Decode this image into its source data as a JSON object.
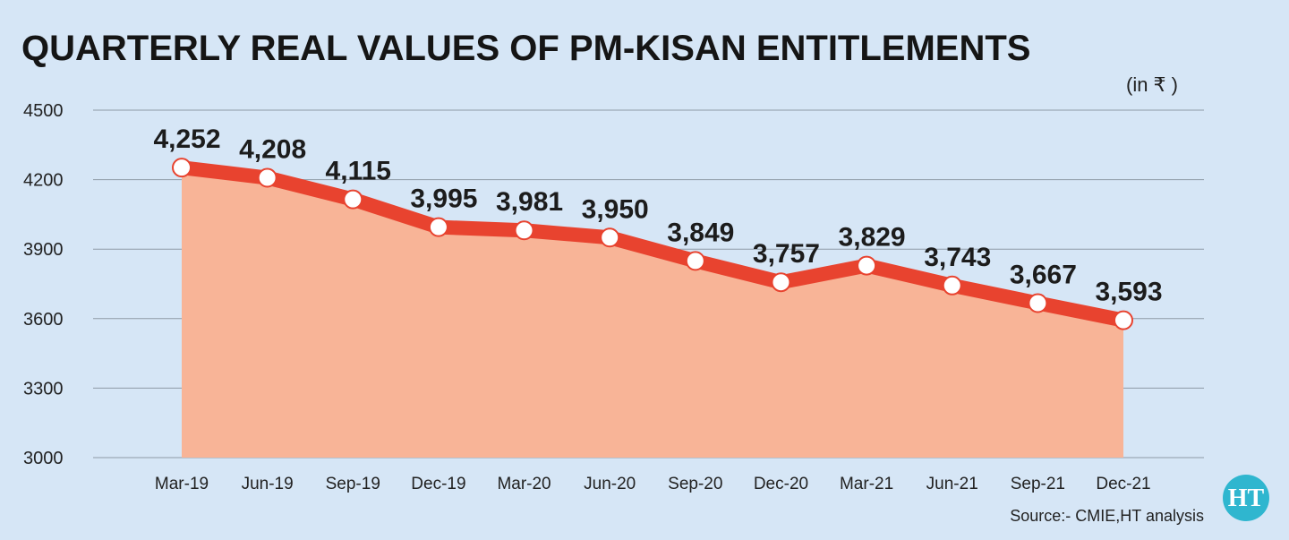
{
  "chart_data": {
    "type": "area",
    "title": "QUARTERLY REAL VALUES OF PM-KISAN ENTITLEMENTS",
    "unit_label": "(in ₹ )",
    "categories": [
      "Mar-19",
      "Jun-19",
      "Sep-19",
      "Dec-19",
      "Mar-20",
      "Jun-20",
      "Sep-20",
      "Dec-20",
      "Mar-21",
      "Jun-21",
      "Sep-21",
      "Dec-21"
    ],
    "values": [
      4252,
      4208,
      4115,
      3995,
      3981,
      3950,
      3849,
      3757,
      3829,
      3743,
      3667,
      3593
    ],
    "data_labels": [
      "4,252",
      "4,208",
      "4,115",
      "3,995",
      "3,981",
      "3,950",
      "3,849",
      "3,757",
      "3,829",
      "3,743",
      "3,667",
      "3,593"
    ],
    "ylim": [
      3000,
      4500
    ],
    "yticks": [
      "4500",
      "4200",
      "3900",
      "3600",
      "3300",
      "3000"
    ],
    "ytick_values": [
      4500,
      4200,
      3900,
      3600,
      3300,
      3000
    ],
    "grid": true,
    "colors": {
      "background": "#d6e6f6",
      "line": "#e8432f",
      "area": "#f8b497",
      "marker_fill": "#ffffff",
      "grid": "#8e9aa6",
      "logo": "#2fb6cf"
    }
  },
  "source": "Source:- CMIE,HT analysis",
  "logo": {
    "text": "HT"
  }
}
